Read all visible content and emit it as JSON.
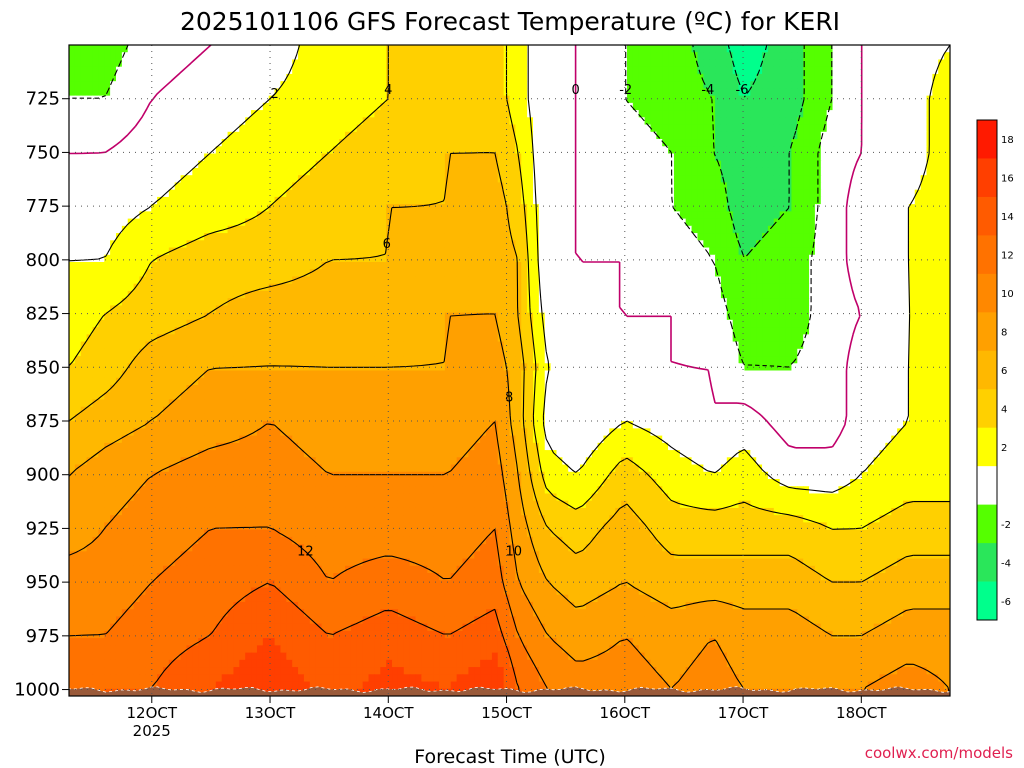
{
  "chart_data": {
    "type": "heatmap",
    "title": "2025101106 GFS Forecast Temperature (ºC) for KERI",
    "xlabel": "Forecast Time (UTC)",
    "ylabel": "",
    "credit": "coolwx.com/models",
    "units": "ºC",
    "y_axis": {
      "unit": "hPa",
      "reversed": true,
      "range": [
        700,
        1003
      ],
      "ticks": [
        725,
        750,
        775,
        800,
        825,
        850,
        875,
        900,
        925,
        950,
        975,
        1000
      ]
    },
    "x_axis": {
      "unit": "day",
      "range": [
        11.3,
        18.75
      ],
      "ticks": [
        {
          "value": 12,
          "label": "12OCT",
          "sublabel": "2025"
        },
        {
          "value": 13,
          "label": "13OCT",
          "sublabel": ""
        },
        {
          "value": 14,
          "label": "14OCT",
          "sublabel": ""
        },
        {
          "value": 15,
          "label": "15OCT",
          "sublabel": ""
        },
        {
          "value": 16,
          "label": "16OCT",
          "sublabel": ""
        },
        {
          "value": 17,
          "label": "17OCT",
          "sublabel": ""
        },
        {
          "value": 18,
          "label": "18OCT",
          "sublabel": ""
        }
      ]
    },
    "colorbar": {
      "ticks": [
        18,
        16,
        14,
        12,
        10,
        8,
        6,
        4,
        2,
        -2,
        -4,
        -6
      ],
      "bins": [
        {
          "min": 18,
          "max": 20,
          "color": "#ff1a00"
        },
        {
          "min": 16,
          "max": 18,
          "color": "#ff3f00"
        },
        {
          "min": 14,
          "max": 16,
          "color": "#ff5b00"
        },
        {
          "min": 12,
          "max": 14,
          "color": "#ff7200"
        },
        {
          "min": 10,
          "max": 12,
          "color": "#ff8800"
        },
        {
          "min": 8,
          "max": 10,
          "color": "#ffa000"
        },
        {
          "min": 6,
          "max": 8,
          "color": "#ffb800"
        },
        {
          "min": 4,
          "max": 6,
          "color": "#ffd000"
        },
        {
          "min": 2,
          "max": 4,
          "color": "#ffff00"
        },
        {
          "min": -2,
          "max": 2,
          "color": "#ffffff"
        },
        {
          "min": -4,
          "max": -2,
          "color": "#55ff00"
        },
        {
          "min": -6,
          "max": -4,
          "color": "#2ae65a"
        },
        {
          "min": -8,
          "max": -6,
          "color": "#00ff8c"
        }
      ]
    },
    "times": [
      11.3,
      11.6,
      12.0,
      12.5,
      13.0,
      13.5,
      14.0,
      14.5,
      14.9,
      15.1,
      15.35,
      15.6,
      16.0,
      16.4,
      16.75,
      17.0,
      17.4,
      17.75,
      18.0,
      18.4,
      18.75
    ],
    "levels": [
      1000,
      975,
      950,
      925,
      900,
      875,
      850,
      825,
      800,
      775,
      750,
      725,
      700
    ],
    "temperature": [
      [
        13,
        14,
        14,
        16,
        18,
        15,
        17,
        16,
        18,
        14,
        12,
        11,
        11,
        10,
        11,
        10,
        10,
        10,
        10,
        11,
        10
      ],
      [
        12,
        12,
        13,
        14,
        16,
        14,
        15,
        14,
        15,
        12,
        10,
        9,
        10,
        9,
        10,
        9,
        9,
        8,
        8,
        9,
        9
      ],
      [
        11,
        11,
        12,
        13,
        14,
        12,
        13,
        12,
        13,
        10,
        8,
        7,
        8,
        7,
        7,
        7,
        7,
        6,
        6,
        7,
        7
      ],
      [
        9,
        10,
        11,
        12,
        12,
        11,
        11,
        11,
        12,
        9,
        6,
        5,
        7,
        5,
        5,
        5,
        5,
        4,
        4,
        5,
        5
      ],
      [
        8,
        9,
        10,
        11,
        11,
        10,
        10,
        10,
        11,
        8,
        3,
        2,
        5,
        3,
        2,
        3,
        1,
        1,
        2,
        3,
        3
      ],
      [
        6,
        7,
        8,
        9,
        10,
        9,
        9,
        9,
        10,
        7,
        1,
        0,
        2,
        1,
        0,
        1,
        -1,
        -1,
        1,
        2,
        3
      ],
      [
        4,
        5,
        7,
        8,
        8,
        8,
        8,
        8,
        9,
        7,
        2,
        0,
        0,
        0,
        0,
        -2,
        -2,
        -1,
        1,
        2,
        3
      ],
      [
        3,
        4,
        5,
        6,
        7,
        7,
        7,
        8,
        8,
        6,
        1,
        0,
        0,
        0,
        -1,
        -3,
        -3,
        -1,
        0,
        2,
        3
      ],
      [
        2,
        2,
        4,
        5,
        5,
        6,
        6,
        7,
        7,
        6,
        0,
        0,
        0,
        -1,
        -2,
        -4,
        -3,
        -1,
        1,
        2,
        3
      ],
      [
        0,
        1,
        2,
        3,
        4,
        5,
        6,
        6,
        7,
        5,
        0,
        0,
        -1,
        -2,
        -3,
        -5,
        -4,
        -1,
        1,
        2,
        3
      ],
      [
        0,
        0,
        1,
        2,
        3,
        4,
        5,
        6,
        6,
        4,
        0,
        0,
        -1,
        -2,
        -4,
        -5,
        -4,
        -1,
        0,
        1,
        3
      ],
      [
        -2,
        -2,
        0,
        1,
        2,
        3,
        4,
        5,
        5,
        3,
        0,
        0,
        -2,
        -3,
        -4,
        -6,
        -5,
        -2,
        0,
        1,
        3
      ],
      [
        -3,
        -3,
        -1,
        0,
        1,
        3,
        4,
        5,
        5,
        3,
        0,
        0,
        -2,
        -3,
        -5,
        -7,
        -5,
        -2,
        0,
        1,
        2
      ]
    ],
    "contour_levels": [
      -6,
      -4,
      -2,
      0,
      2,
      4,
      6,
      8,
      10,
      12,
      14
    ],
    "contour_colors": {
      "zero": "#c0006a",
      "negative": "#000000",
      "positive": "#000000"
    },
    "ground_color": "#9a5a3a",
    "grid": true
  }
}
